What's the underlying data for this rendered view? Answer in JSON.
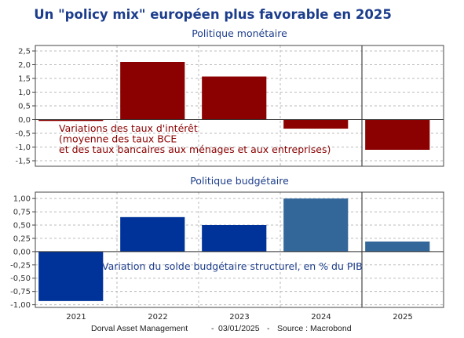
{
  "title": "Un \"policy mix\" européen plus favorable en 2025",
  "source": {
    "author": "Dorval Asset Management",
    "sep1": "-",
    "date": "03/01/2025",
    "sep2": "-",
    "source": "Source : Macrobond"
  },
  "colors": {
    "title": "#1c3d8c",
    "monetary_bar": "#8b0000",
    "budget_bar": "#003399",
    "budget_bar_estimate": "#336699",
    "grid": "#bbbbbb",
    "axis": "#444444"
  },
  "chart_data": [
    {
      "type": "bar",
      "title": "Politique monétaire",
      "categories": [
        "2021",
        "2022",
        "2023",
        "2024",
        "2025"
      ],
      "values": [
        -0.05,
        2.1,
        1.57,
        -0.33,
        -1.1
      ],
      "ylim": [
        -1.7,
        2.7
      ],
      "yticks": [
        2.5,
        2.0,
        1.5,
        1.0,
        0.5,
        0.0,
        -0.5,
        -1.0,
        -1.5
      ],
      "ytick_labels": [
        "2,5",
        "2,0",
        "1,5",
        "1,0",
        "0,5",
        "0,0",
        "-0,5",
        "-1,0",
        "-1,5"
      ],
      "grid": true,
      "forecast_divider_after": "2024",
      "annotation": [
        "Variations des taux d'intérêt",
        "(moyenne des taux BCE",
        "et des taux bancaires aux ménages et aux entreprises)"
      ],
      "bar_colors": [
        "#8b0000",
        "#8b0000",
        "#8b0000",
        "#8b0000",
        "#8b0000"
      ]
    },
    {
      "type": "bar",
      "title": "Politique budgétaire",
      "categories": [
        "2021",
        "2022",
        "2023",
        "2024",
        "2025"
      ],
      "values": [
        -0.93,
        0.65,
        0.5,
        1.0,
        0.19
      ],
      "ylim": [
        -1.05,
        1.12
      ],
      "yticks": [
        1.0,
        0.75,
        0.5,
        0.25,
        0.0,
        -0.25,
        -0.5,
        -0.75,
        -1.0
      ],
      "ytick_labels": [
        "1,00",
        "0,75",
        "0,50",
        "0,25",
        "0,00",
        "-0,25",
        "-0,50",
        "-0,75",
        "-1,00"
      ],
      "grid": true,
      "forecast_divider_after": "2024",
      "annotation": [
        "Variation du solde budgétaire structurel, en % du PIB"
      ],
      "bar_colors": [
        "#003399",
        "#003399",
        "#003399",
        "#336699",
        "#336699"
      ]
    }
  ]
}
